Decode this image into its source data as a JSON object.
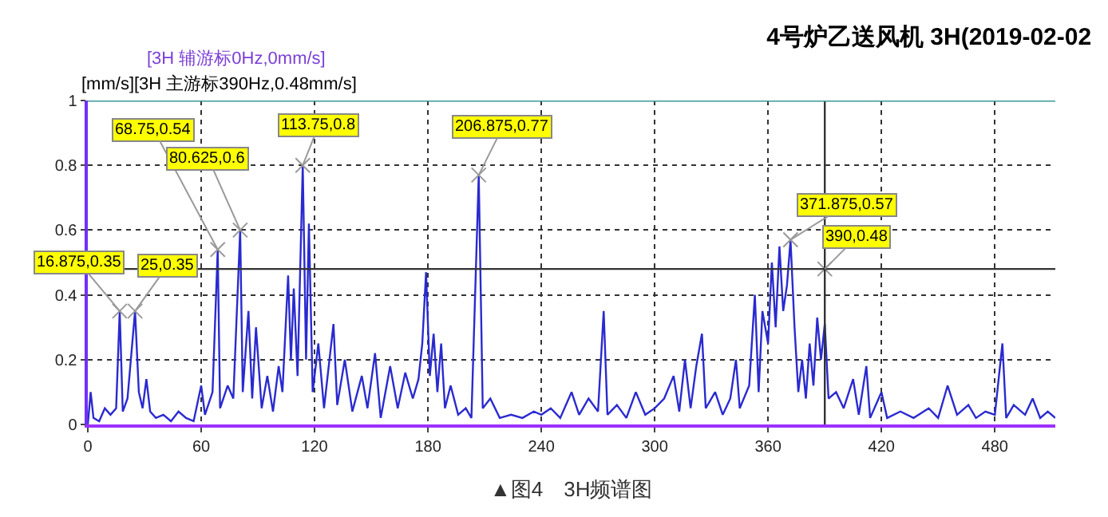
{
  "chart_data": {
    "type": "line",
    "title": "4号炉乙送风机 3H(2019-02-02",
    "ylabel": "[mm/s]",
    "x": [
      0,
      1.5,
      3,
      6,
      9,
      12,
      15,
      16.875,
      18.5,
      21,
      25,
      27,
      29,
      31,
      33,
      36,
      40,
      44,
      48,
      52,
      56,
      60,
      62,
      66,
      68.75,
      70,
      74,
      77,
      80.625,
      82,
      85,
      87,
      89,
      92,
      95,
      98,
      101,
      103,
      106,
      107.5,
      109,
      111,
      113.75,
      115.5,
      117,
      119,
      122,
      125,
      130,
      132,
      136,
      140,
      145,
      148,
      152,
      155,
      160,
      164,
      168,
      172,
      175,
      177,
      179,
      181,
      183,
      185,
      187,
      189,
      192,
      196,
      200,
      203,
      206.875,
      209,
      213,
      218,
      224,
      230,
      236,
      240,
      245,
      250,
      256,
      260,
      265,
      270,
      273,
      275,
      280,
      285,
      290,
      295,
      300,
      305,
      310,
      313,
      316,
      319,
      322,
      325,
      327,
      332,
      336,
      340,
      343,
      345,
      350,
      353,
      355,
      357,
      360,
      362,
      364,
      366,
      368,
      370,
      371.875,
      374,
      376,
      378,
      380,
      382,
      384,
      386,
      388,
      390,
      392,
      396,
      400,
      405,
      408,
      412,
      414,
      420,
      423,
      430,
      437,
      445,
      450,
      455,
      460,
      466,
      470,
      475,
      480,
      484,
      486,
      490,
      496,
      500,
      504,
      508,
      512
    ],
    "series": [
      {
        "color": "#2a2ad0",
        "values": [
          0,
          0.1,
          0.02,
          0.01,
          0.05,
          0.03,
          0.05,
          0.35,
          0.04,
          0.08,
          0.35,
          0.1,
          0.05,
          0.14,
          0.04,
          0.02,
          0.03,
          0.01,
          0.04,
          0.02,
          0.01,
          0.12,
          0.03,
          0.1,
          0.54,
          0.05,
          0.12,
          0.08,
          0.6,
          0.1,
          0.35,
          0.08,
          0.3,
          0.05,
          0.15,
          0.04,
          0.18,
          0.1,
          0.46,
          0.2,
          0.42,
          0.15,
          0.8,
          0.2,
          0.62,
          0.1,
          0.25,
          0.05,
          0.31,
          0.06,
          0.2,
          0.04,
          0.15,
          0.05,
          0.22,
          0.02,
          0.18,
          0.05,
          0.16,
          0.08,
          0.14,
          0.25,
          0.47,
          0.15,
          0.28,
          0.1,
          0.25,
          0.05,
          0.12,
          0.03,
          0.05,
          0.02,
          0.77,
          0.05,
          0.08,
          0.02,
          0.03,
          0.02,
          0.04,
          0.03,
          0.05,
          0.02,
          0.1,
          0.03,
          0.08,
          0.04,
          0.35,
          0.03,
          0.06,
          0.02,
          0.1,
          0.03,
          0.05,
          0.08,
          0.15,
          0.04,
          0.2,
          0.05,
          0.18,
          0.28,
          0.05,
          0.1,
          0.03,
          0.08,
          0.2,
          0.05,
          0.12,
          0.4,
          0.1,
          0.35,
          0.25,
          0.5,
          0.3,
          0.55,
          0.35,
          0.43,
          0.57,
          0.3,
          0.1,
          0.2,
          0.08,
          0.25,
          0.12,
          0.33,
          0.2,
          0.31,
          0.08,
          0.1,
          0.05,
          0.14,
          0.03,
          0.18,
          0.02,
          0.1,
          0.02,
          0.04,
          0.02,
          0.05,
          0.02,
          0.12,
          0.03,
          0.06,
          0.02,
          0.04,
          0.03,
          0.25,
          0.02,
          0.06,
          0.03,
          0.08,
          0.02,
          0.04,
          0.02
        ]
      }
    ],
    "xlim": [
      0,
      512
    ],
    "ylim": [
      0,
      1
    ],
    "xticks": [
      0,
      60,
      120,
      180,
      240,
      300,
      360,
      420,
      480
    ],
    "yticks": [
      0,
      0.2,
      0.4,
      0.6,
      0.8,
      1
    ],
    "grid": true,
    "marker": "none",
    "line_style": "solid",
    "ref_lines": [
      {
        "axis": "y",
        "value": 0.48,
        "color": "#333333"
      },
      {
        "axis": "x",
        "value": 390,
        "color": "#333333"
      }
    ],
    "annotations": [
      "[3H 辅游标0Hz,0mm/s]",
      "[3H 主游标390Hz,0.48mm/s]",
      "▲图4　3H频谱图",
      {
        "text": "16.875,0.35",
        "x": 16.875,
        "y": 0.35
      },
      {
        "text": "25,0.35",
        "x": 25,
        "y": 0.35
      },
      {
        "text": "68.75,0.54",
        "x": 68.75,
        "y": 0.54
      },
      {
        "text": "80.625,0.6",
        "x": 80.625,
        "y": 0.6
      },
      {
        "text": "113.75,0.8",
        "x": 113.75,
        "y": 0.8
      },
      {
        "text": "206.875,0.77",
        "x": 206.875,
        "y": 0.77
      },
      {
        "text": "371.875,0.57",
        "x": 371.875,
        "y": 0.57
      },
      {
        "text": "390,0.48",
        "x": 390,
        "y": 0.48
      }
    ]
  }
}
